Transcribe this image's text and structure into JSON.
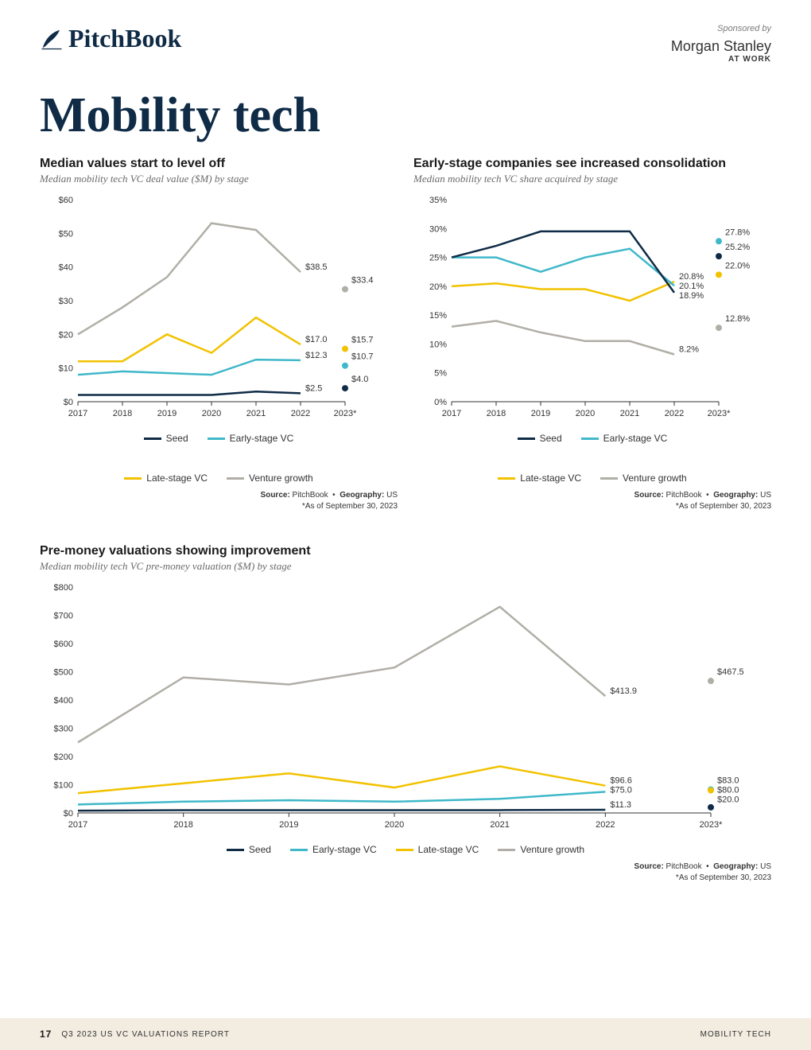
{
  "header": {
    "logo_text": "PitchBook",
    "sponsor_label": "Sponsored by",
    "sponsor_name": "Morgan Stanley",
    "sponsor_sub": "AT WORK"
  },
  "page_title": "Mobility tech",
  "colors": {
    "seed": "#0f2b46",
    "early": "#3fb8c9",
    "late": "#f2c200",
    "growth": "#b0aea6",
    "axis": "#333333",
    "grid": "#cccccc",
    "bg": "#ffffff"
  },
  "legend_labels": {
    "seed": "Seed",
    "early": "Early-stage VC",
    "late": "Late-stage VC",
    "growth": "Venture growth"
  },
  "source": {
    "source_label": "Source:",
    "source_value": "PitchBook",
    "geo_label": "Geography:",
    "geo_value": "US",
    "note": "*As of September 30, 2023"
  },
  "chart1": {
    "title": "Median values start to level off",
    "subtitle": "Median mobility tech VC deal value ($M) by stage",
    "type": "line",
    "x_labels": [
      "2017",
      "2018",
      "2019",
      "2020",
      "2021",
      "2022",
      "2023*"
    ],
    "y_min": 0,
    "y_max": 60,
    "y_step": 10,
    "y_prefix": "$",
    "series": {
      "seed": [
        2.0,
        2.0,
        2.0,
        2.0,
        3.0,
        2.5
      ],
      "early": [
        8.0,
        9.0,
        8.5,
        8.0,
        12.5,
        12.3
      ],
      "late": [
        12.0,
        12.0,
        20.0,
        14.5,
        25.0,
        17.0
      ],
      "growth": [
        20.0,
        28.0,
        37.0,
        53.0,
        51.0,
        38.5
      ]
    },
    "end_points": {
      "seed": 4.0,
      "early": 10.7,
      "late": 15.7,
      "growth": 33.4
    },
    "end_labels_2022": {
      "growth": "$38.5",
      "late": "$17.0",
      "early": "$12.3",
      "seed": "$2.5"
    },
    "end_labels_2023": {
      "growth": "$33.4",
      "late": "$15.7",
      "early": "$10.7",
      "seed": "$4.0"
    }
  },
  "chart2": {
    "title": "Early-stage companies see increased consolidation",
    "subtitle": "Median mobility tech VC share acquired by stage",
    "type": "line",
    "x_labels": [
      "2017",
      "2018",
      "2019",
      "2020",
      "2021",
      "2022",
      "2023*"
    ],
    "y_min": 0,
    "y_max": 35,
    "y_step": 5,
    "y_suffix": "%",
    "series": {
      "seed": [
        25.0,
        27.0,
        29.5,
        29.5,
        29.5,
        18.9
      ],
      "early": [
        25.0,
        25.0,
        22.5,
        25.0,
        26.5,
        20.1
      ],
      "late": [
        20.0,
        20.5,
        19.5,
        19.5,
        17.5,
        20.8
      ],
      "growth": [
        13.0,
        14.0,
        12.0,
        10.5,
        10.5,
        8.2
      ]
    },
    "end_points": {
      "seed": 25.2,
      "early": 27.8,
      "late": 22.0,
      "growth": 12.8
    },
    "end_labels_2022": {
      "late": "20.8%",
      "early": "20.1%",
      "seed": "18.9%",
      "growth": "8.2%"
    },
    "end_labels_2023": {
      "early": "27.8%",
      "seed": "25.2%",
      "late": "22.0%",
      "growth": "12.8%"
    }
  },
  "chart3": {
    "title": "Pre-money valuations showing improvement",
    "subtitle": "Median mobility tech VC pre-money valuation ($M) by stage",
    "type": "line",
    "x_labels": [
      "2017",
      "2018",
      "2019",
      "2020",
      "2021",
      "2022",
      "2023*"
    ],
    "y_min": 0,
    "y_max": 800,
    "y_step": 100,
    "y_prefix": "$",
    "series": {
      "seed": [
        8,
        10,
        10,
        10,
        10,
        11.3
      ],
      "early": [
        30,
        40,
        45,
        40,
        50,
        75.0
      ],
      "late": [
        70,
        105,
        140,
        90,
        165,
        96.6
      ],
      "growth": [
        250,
        480,
        455,
        515,
        730,
        413.9
      ]
    },
    "end_points": {
      "seed": 20.0,
      "early": 83.0,
      "late": 80.0,
      "growth": 467.5
    },
    "end_labels_2022": {
      "growth": "$413.9",
      "late": "$96.6",
      "early": "$75.0",
      "seed": "$11.3"
    },
    "end_labels_2023": {
      "growth": "$467.5",
      "late": "$80.0",
      "early": "$83.0",
      "seed": "$20.0"
    }
  },
  "footer": {
    "page_number": "17",
    "report": "Q3 2023 US VC VALUATIONS REPORT",
    "section": "MOBILITY TECH"
  }
}
